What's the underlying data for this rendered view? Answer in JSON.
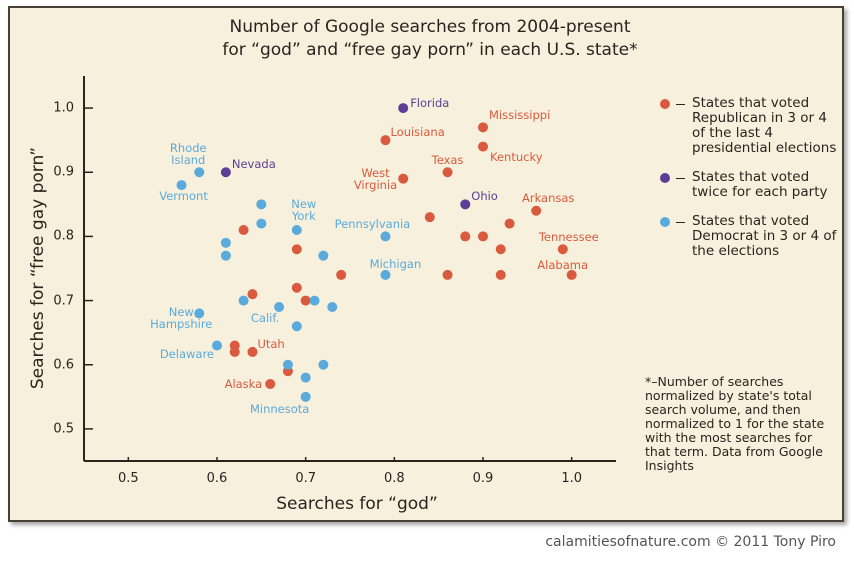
{
  "chart_data": {
    "type": "scatter",
    "title": [
      "Number of Google searches from 2004-present",
      "for “god” and “free gay porn” in each U.S. state*"
    ],
    "x_label": "Searches for “god”",
    "y_label": "Searches for “free gay porn”",
    "xlim": [
      0.45,
      1.05
    ],
    "ylim": [
      0.45,
      1.05
    ],
    "xticks": [
      0.5,
      0.6,
      0.7,
      0.8,
      0.9,
      {
        "value": 1,
        "label": "1.0"
      }
    ],
    "yticks": [
      0.5,
      0.6,
      0.7,
      0.8,
      0.9,
      {
        "value": 1,
        "label": "1.0"
      }
    ],
    "grid": false,
    "series": [
      {
        "name": "States that voted Republican in 3 or 4 of the last 4 presidential elections",
        "color": "#d95a3e",
        "x": [
          0.9,
          0.9,
          0.79,
          0.86,
          0.81,
          0.96,
          0.99,
          1.0,
          0.64,
          0.66,
          0.84,
          0.93,
          0.88,
          0.9,
          0.92,
          0.92,
          0.86,
          0.74,
          0.69,
          0.63,
          0.64,
          0.69,
          0.7,
          0.62,
          0.62,
          0.68
        ],
        "values": [
          0.97,
          0.94,
          0.95,
          0.9,
          0.89,
          0.84,
          0.78,
          0.74,
          0.62,
          0.57,
          0.83,
          0.82,
          0.8,
          0.8,
          0.78,
          0.74,
          0.74,
          0.74,
          0.78,
          0.81,
          0.71,
          0.72,
          0.7,
          0.63,
          0.62,
          0.59
        ],
        "labels": [
          "Mississippi",
          "Kentucky",
          "Louisiana",
          "Texas",
          "West\nVirginia",
          "Arkansas",
          "Tennessee",
          "Alabama",
          "Utah",
          "Alaska",
          null,
          null,
          null,
          null,
          null,
          null,
          null,
          null,
          null,
          null,
          null,
          null,
          null,
          null,
          null,
          null
        ]
      },
      {
        "name": "States that voted twice for each party",
        "color": "#5b3f96",
        "x": [
          0.81,
          0.61,
          0.88
        ],
        "values": [
          1.0,
          0.9,
          0.85
        ],
        "labels": [
          "Florida",
          "Nevada",
          "Ohio"
        ]
      },
      {
        "name": "States that voted Democrat in 3 or 4 of the elections",
        "color": "#5aaadc",
        "x": [
          0.58,
          0.56,
          0.69,
          0.79,
          0.79,
          0.67,
          0.58,
          0.6,
          0.7,
          0.65,
          0.65,
          0.61,
          0.61,
          0.72,
          0.63,
          0.71,
          0.73,
          0.69,
          0.68,
          0.72,
          0.7
        ],
        "values": [
          0.9,
          0.88,
          0.81,
          0.8,
          0.74,
          0.69,
          0.68,
          0.63,
          0.55,
          0.85,
          0.82,
          0.79,
          0.77,
          0.77,
          0.7,
          0.7,
          0.69,
          0.66,
          0.6,
          0.6,
          0.58
        ],
        "labels": [
          "Rhode\nIsland",
          "Vermont",
          "New\nYork",
          "Pennsylvania",
          "Michigan",
          "Calif.",
          "New\nHampshire",
          "Delaware",
          "Minnesota",
          null,
          null,
          null,
          null,
          null,
          null,
          null,
          null,
          null,
          null,
          null,
          null
        ]
      }
    ],
    "footnote": "*–Number of searches normalized by state's total search volume, and then normalized to 1 for the state with the most searches for that term. Data from Google Insights",
    "credit": "calamitiesofnature.com © 2011 Tony Piro"
  }
}
